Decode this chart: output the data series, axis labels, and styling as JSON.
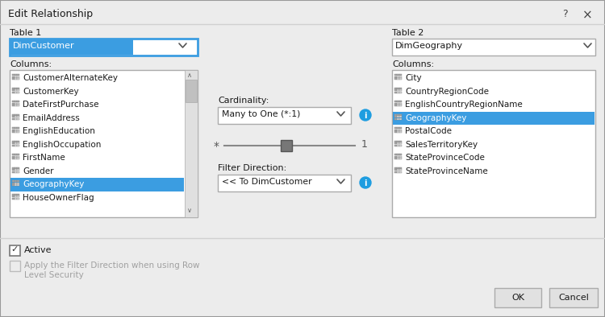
{
  "title": "Edit Relationship",
  "bg_color": "#ececec",
  "table1_label": "Table 1",
  "table1_value": "DimCustomer",
  "table2_label": "Table 2",
  "table2_value": "DimGeography",
  "columns1_label": "Columns:",
  "columns2_label": "Columns:",
  "columns1": [
    "CustomerAlternateKey",
    "CustomerKey",
    "DateFirstPurchase",
    "EmailAddress",
    "EnglishEducation",
    "EnglishOccupation",
    "FirstName",
    "Gender",
    "GeographyKey",
    "HouseOwnerFlag"
  ],
  "columns2": [
    "City",
    "CountryRegionCode",
    "EnglishCountryRegionName",
    "GeographyKey",
    "PostalCode",
    "SalesTerritoryKey",
    "StateProvinceCode",
    "StateProvinceName"
  ],
  "selected1_idx": 8,
  "selected2_idx": 3,
  "cardinality_label": "Cardinality:",
  "cardinality_value": "Many to One (*:1)",
  "filter_label": "Filter Direction:",
  "filter_value": "<< To DimCustomer",
  "highlight_blue": "#3b9de1",
  "dropdown_bg": "#ffffff",
  "dropdown_border": "#ababab",
  "selected_dropdown_border": "#3b9de1",
  "listbox_bg": "#ffffff",
  "listbox_border": "#ababab",
  "button_bg": "#e1e1e1",
  "button_border": "#ababab",
  "text_color": "#1a1a1a",
  "label_color": "#1a1a1a",
  "info_blue": "#1e9de0",
  "scrollbar_bg": "#e0e0e0",
  "scrollbar_thumb": "#c0c0c0",
  "active_text": "#a0a0a0",
  "slider_color": "#888888",
  "titlebar_border": "#999999",
  "separator_color": "#d0d0d0",
  "icon_grid_color": "#aaaaaa",
  "icon_bg": "#e8e8e8"
}
